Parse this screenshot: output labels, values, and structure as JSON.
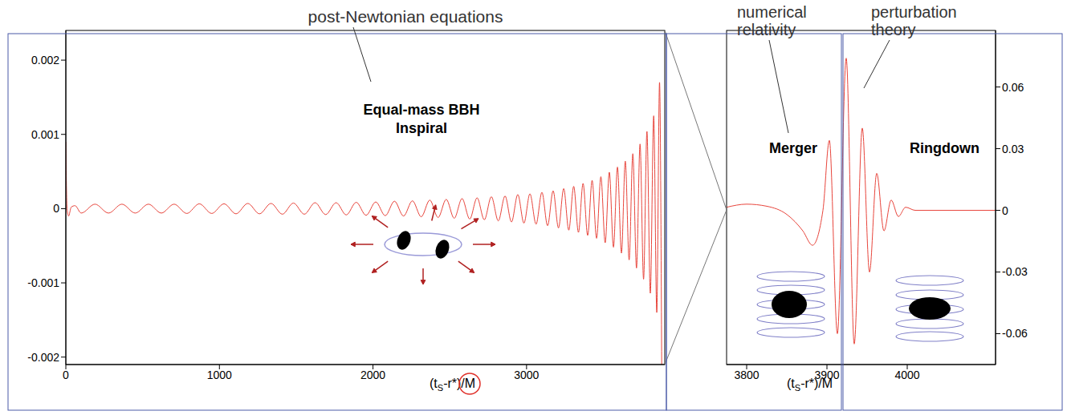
{
  "chart_data": [
    {
      "type": "line",
      "xlabel": [
        "(t",
        "S",
        "-r*)/M"
      ],
      "annotations": {
        "method": "post-Newtonian equations",
        "phase": [
          "Equal-mass BBH",
          "Inspiral"
        ]
      },
      "xlim": [
        0,
        3900
      ],
      "xticks": [
        0,
        1000,
        2000,
        3000
      ],
      "ylim": [
        -0.0021,
        0.0024
      ],
      "yticks": [
        -0.002,
        -0.001,
        0,
        0.001,
        0.002
      ],
      "x": [
        0,
        8,
        18,
        35,
        60,
        100,
        190,
        278,
        365,
        452,
        538,
        622,
        705,
        788,
        869,
        950,
        1030,
        1108,
        1185,
        1261,
        1336,
        1410,
        1482,
        1553,
        1623,
        1692,
        1760,
        1826,
        1891,
        1955,
        2018,
        2080,
        2140,
        2199,
        2257,
        2314,
        2370,
        2424,
        2477,
        2529,
        2580,
        2630,
        2678,
        2725,
        2771,
        2816,
        2860,
        2902,
        2943,
        2983,
        3022,
        3062,
        3100,
        3137,
        3173,
        3208,
        3242,
        3275,
        3307,
        3338,
        3368,
        3398,
        3427,
        3456,
        3484,
        3512,
        3539,
        3566,
        3592,
        3618,
        3643,
        3668,
        3692,
        3716,
        3739,
        3762,
        3784,
        3806,
        3828,
        3848,
        3866,
        3880
      ],
      "series": [
        {
          "color": "#e8453c",
          "values": [
            0.0009,
            0,
            -0.0001,
            2e-05,
            4e-05,
            -6e-05,
            6e-05,
            -6e-05,
            6e-05,
            -6e-05,
            6e-05,
            -6e-05,
            6e-05,
            -6.5e-05,
            6.5e-05,
            -6.5e-05,
            6.5e-05,
            -7e-05,
            7e-05,
            -7e-05,
            7e-05,
            -7.5e-05,
            7.5e-05,
            -7.5e-05,
            8e-05,
            -8e-05,
            8e-05,
            -8.5e-05,
            8.5e-05,
            -9e-05,
            9e-05,
            -9.5e-05,
            0.0001,
            -0.0001,
            0.000105,
            -0.00011,
            0.000115,
            -0.00012,
            0.000125,
            -0.00013,
            0.000135,
            -0.00014,
            0.000145,
            -0.00015,
            0.00016,
            -0.000165,
            0.00017,
            -0.00018,
            0.00019,
            -0.000195,
            0.0002,
            -0.00021,
            0.00022,
            -0.00023,
            0.00024,
            -0.00026,
            0.00027,
            -0.00029,
            0.0003,
            -0.00032,
            0.00034,
            -0.00036,
            0.00038,
            -0.0004,
            0.00043,
            -0.00046,
            0.00049,
            -0.00052,
            0.00056,
            -0.0006,
            0.00064,
            -0.00069,
            0.00074,
            -0.0008,
            0.00087,
            -0.00095,
            0.00104,
            -0.00114,
            0.00125,
            -0.0014,
            0.0017,
            -0.0021
          ]
        }
      ]
    },
    {
      "type": "line",
      "xlabel": [
        "(t",
        "S",
        "-r*)/M"
      ],
      "annotations": {
        "method": [
          "numerical relativity",
          "perturbation theory"
        ],
        "phase": [
          "Merger",
          "Ringdown"
        ]
      },
      "xlim": [
        3775,
        4110
      ],
      "xticks": [
        3800,
        3900,
        4000
      ],
      "ylim": [
        -0.075,
        0.0875
      ],
      "yticks": [
        -0.06,
        -0.03,
        0,
        0.03,
        0.06
      ],
      "x": [
        3775,
        3800,
        3825,
        3850,
        3870,
        3882,
        3895,
        3903,
        3913,
        3924,
        3934,
        3944,
        3953,
        3962,
        3971,
        3980,
        3989,
        3998,
        4010,
        4110
      ],
      "series": [
        {
          "color": "#e8453c",
          "values": [
            0.0015,
            0.003,
            0.002,
            -0.002,
            -0.01,
            -0.017,
            0,
            0.034,
            -0.06,
            0.074,
            -0.065,
            0.04,
            -0.03,
            0.018,
            -0.01,
            0.005,
            -0.003,
            0.0015,
            0,
            0
          ]
        }
      ]
    }
  ]
}
